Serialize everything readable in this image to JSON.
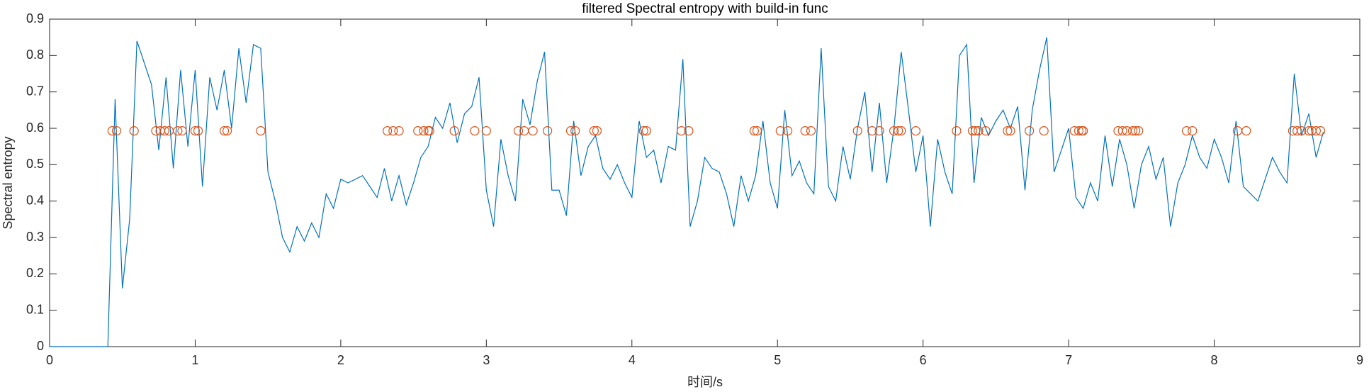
{
  "chart_data": {
    "type": "line",
    "title": "filtered Spectral entropy with build-in func",
    "xlabel": "时间/s",
    "ylabel": "Spectral entropy",
    "xlim": [
      0,
      9
    ],
    "xticks": [
      0,
      1,
      2,
      3,
      4,
      5,
      6,
      7,
      8,
      9
    ],
    "ylim": [
      0,
      0.9
    ],
    "yticks": [
      0,
      0.1,
      0.2,
      0.3,
      0.4,
      0.5,
      0.6,
      0.7,
      0.8,
      0.9
    ],
    "grid": false,
    "series": [
      {
        "style": "line",
        "color": "#0072bd",
        "x": [
          0,
          0.05,
          0.1,
          0.15,
          0.2,
          0.25,
          0.3,
          0.35,
          0.4,
          0.45,
          0.5,
          0.55,
          0.6,
          0.65,
          0.7,
          0.75,
          0.8,
          0.85,
          0.9,
          0.95,
          1,
          1.05,
          1.1,
          1.15,
          1.2,
          1.25,
          1.3,
          1.35,
          1.4,
          1.45,
          1.5,
          1.55,
          1.6,
          1.65,
          1.7,
          1.75,
          1.8,
          1.85,
          1.9,
          1.95,
          2,
          2.05,
          2.1,
          2.15,
          2.2,
          2.25,
          2.3,
          2.35,
          2.4,
          2.45,
          2.5,
          2.55,
          2.6,
          2.65,
          2.7,
          2.75,
          2.8,
          2.85,
          2.9,
          2.95,
          3,
          3.05,
          3.1,
          3.15,
          3.2,
          3.25,
          3.3,
          3.35,
          3.4,
          3.45,
          3.5,
          3.55,
          3.6,
          3.65,
          3.7,
          3.75,
          3.8,
          3.85,
          3.9,
          3.95,
          4,
          4.05,
          4.1,
          4.15,
          4.2,
          4.25,
          4.3,
          4.35,
          4.4,
          4.45,
          4.5,
          4.55,
          4.6,
          4.65,
          4.7,
          4.75,
          4.8,
          4.85,
          4.9,
          4.95,
          5,
          5.05,
          5.1,
          5.15,
          5.2,
          5.25,
          5.3,
          5.35,
          5.4,
          5.45,
          5.5,
          5.55,
          5.6,
          5.65,
          5.7,
          5.75,
          5.8,
          5.85,
          5.9,
          5.95,
          6,
          6.05,
          6.1,
          6.15,
          6.2,
          6.25,
          6.3,
          6.35,
          6.4,
          6.45,
          6.5,
          6.55,
          6.6,
          6.65,
          6.7,
          6.75,
          6.8,
          6.85,
          6.9,
          6.95,
          7,
          7.05,
          7.1,
          7.15,
          7.2,
          7.25,
          7.3,
          7.35,
          7.4,
          7.45,
          7.5,
          7.55,
          7.6,
          7.65,
          7.7,
          7.75,
          7.8,
          7.85,
          7.9,
          7.95,
          8,
          8.05,
          8.1,
          8.15,
          8.2,
          8.25,
          8.3,
          8.35,
          8.4,
          8.45,
          8.5,
          8.55,
          8.6,
          8.65,
          8.7,
          8.75
        ],
        "values": [
          0,
          0,
          0,
          0,
          0,
          0,
          0,
          0,
          0,
          0.68,
          0.16,
          0.35,
          0.84,
          0.78,
          0.72,
          0.54,
          0.74,
          0.49,
          0.76,
          0.55,
          0.76,
          0.44,
          0.74,
          0.65,
          0.76,
          0.6,
          0.82,
          0.67,
          0.83,
          0.82,
          0.48,
          0.4,
          0.3,
          0.26,
          0.33,
          0.29,
          0.34,
          0.3,
          0.42,
          0.38,
          0.46,
          0.45,
          0.46,
          0.47,
          0.44,
          0.41,
          0.49,
          0.4,
          0.47,
          0.39,
          0.45,
          0.52,
          0.55,
          0.63,
          0.6,
          0.67,
          0.56,
          0.64,
          0.66,
          0.74,
          0.43,
          0.33,
          0.57,
          0.47,
          0.4,
          0.68,
          0.61,
          0.73,
          0.81,
          0.43,
          0.43,
          0.36,
          0.62,
          0.47,
          0.55,
          0.58,
          0.49,
          0.46,
          0.5,
          0.45,
          0.41,
          0.62,
          0.52,
          0.54,
          0.45,
          0.55,
          0.54,
          0.79,
          0.33,
          0.4,
          0.52,
          0.49,
          0.48,
          0.42,
          0.33,
          0.47,
          0.4,
          0.47,
          0.62,
          0.45,
          0.38,
          0.65,
          0.47,
          0.51,
          0.45,
          0.42,
          0.82,
          0.44,
          0.4,
          0.55,
          0.46,
          0.6,
          0.7,
          0.48,
          0.67,
          0.45,
          0.6,
          0.81,
          0.65,
          0.48,
          0.58,
          0.33,
          0.57,
          0.48,
          0.42,
          0.8,
          0.83,
          0.45,
          0.63,
          0.58,
          0.62,
          0.65,
          0.6,
          0.66,
          0.43,
          0.65,
          0.76,
          0.85,
          0.48,
          0.54,
          0.6,
          0.41,
          0.38,
          0.45,
          0.4,
          0.58,
          0.44,
          0.57,
          0.5,
          0.38,
          0.5,
          0.55,
          0.46,
          0.52,
          0.33,
          0.45,
          0.5,
          0.58,
          0.52,
          0.49,
          0.57,
          0.52,
          0.45,
          0.62,
          0.44,
          0.42,
          0.4,
          0.46,
          0.52,
          0.48,
          0.45,
          0.75,
          0.58,
          0.64,
          0.52,
          0.59
        ]
      },
      {
        "style": "markers",
        "color": "#d95319",
        "x": [
          0.43,
          0.46,
          0.58,
          0.73,
          0.76,
          0.79,
          0.82,
          0.88,
          0.91,
          1.0,
          1.02,
          1.2,
          1.22,
          1.45,
          2.32,
          2.36,
          2.4,
          2.53,
          2.57,
          2.6,
          2.61,
          2.78,
          2.92,
          3.0,
          3.22,
          3.26,
          3.32,
          3.42,
          3.58,
          3.61,
          3.74,
          3.76,
          4.08,
          4.1,
          4.34,
          4.39,
          4.84,
          4.86,
          5.02,
          5.07,
          5.19,
          5.23,
          5.55,
          5.65,
          5.7,
          5.8,
          5.83,
          5.85,
          5.95,
          6.23,
          6.34,
          6.36,
          6.38,
          6.43,
          6.58,
          6.6,
          6.73,
          6.83,
          7.04,
          7.07,
          7.09,
          7.1,
          7.34,
          7.37,
          7.4,
          7.44,
          7.46,
          7.48,
          7.81,
          7.85,
          8.16,
          8.22,
          8.54,
          8.57,
          8.6,
          8.65,
          8.67,
          8.7,
          8.73
        ],
        "values": [
          0.593,
          0.593,
          0.593,
          0.593,
          0.593,
          0.593,
          0.593,
          0.593,
          0.593,
          0.593,
          0.593,
          0.593,
          0.593,
          0.593,
          0.593,
          0.593,
          0.593,
          0.593,
          0.593,
          0.593,
          0.593,
          0.593,
          0.593,
          0.593,
          0.593,
          0.593,
          0.593,
          0.593,
          0.593,
          0.593,
          0.593,
          0.593,
          0.593,
          0.593,
          0.593,
          0.593,
          0.593,
          0.593,
          0.593,
          0.593,
          0.593,
          0.593,
          0.593,
          0.593,
          0.593,
          0.593,
          0.593,
          0.593,
          0.593,
          0.593,
          0.593,
          0.593,
          0.593,
          0.593,
          0.593,
          0.593,
          0.593,
          0.593,
          0.593,
          0.593,
          0.593,
          0.593,
          0.593,
          0.593,
          0.593,
          0.593,
          0.593,
          0.593,
          0.593,
          0.593,
          0.593,
          0.593,
          0.593,
          0.593,
          0.593,
          0.593,
          0.593,
          0.593,
          0.593
        ]
      }
    ]
  }
}
